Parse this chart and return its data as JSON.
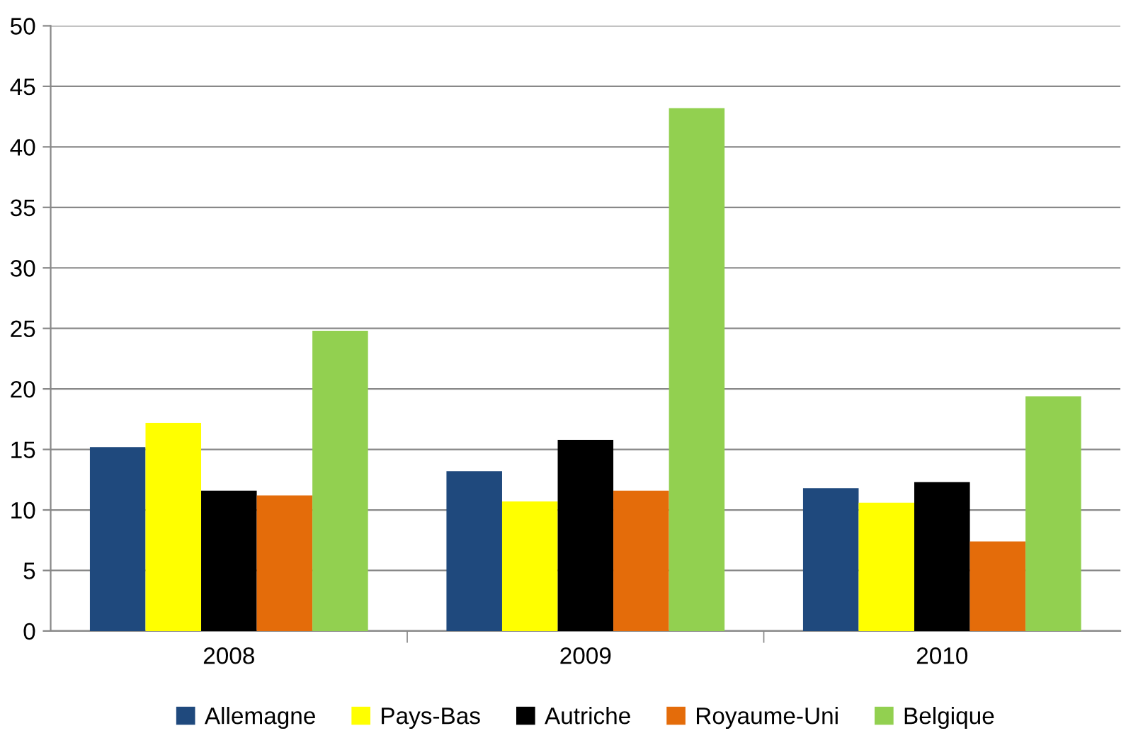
{
  "chart_data": {
    "type": "bar",
    "categories": [
      "2008",
      "2009",
      "2010"
    ],
    "series": [
      {
        "name": "Allemagne",
        "color": "#1f497d",
        "values": [
          15.2,
          13.2,
          11.8
        ]
      },
      {
        "name": "Pays-Bas",
        "color": "#ffff00",
        "values": [
          17.2,
          10.7,
          10.6
        ]
      },
      {
        "name": "Autriche",
        "color": "#000000",
        "values": [
          11.6,
          15.8,
          12.3
        ]
      },
      {
        "name": "Royaume-Uni",
        "color": "#e46c0a",
        "values": [
          11.2,
          11.6,
          7.4
        ]
      },
      {
        "name": "Belgique",
        "color": "#92d050",
        "values": [
          24.8,
          43.2,
          19.4
        ]
      }
    ],
    "ylim": [
      0,
      50
    ],
    "yticks": [
      0,
      5,
      10,
      15,
      20,
      25,
      30,
      35,
      40,
      45,
      50
    ],
    "grid": "y",
    "legend": "bottom"
  }
}
